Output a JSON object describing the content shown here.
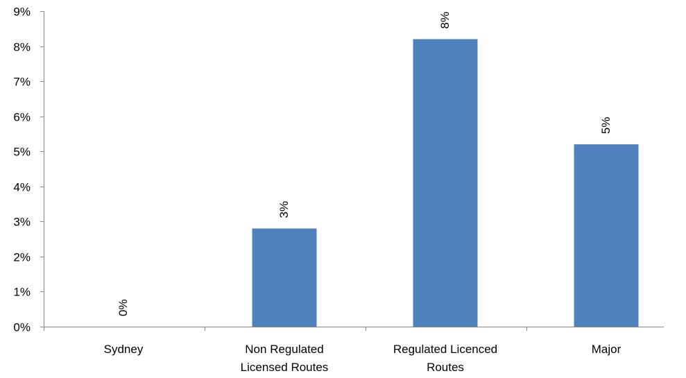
{
  "chart_data": {
    "type": "bar",
    "categories": [
      [
        "Sydney"
      ],
      [
        "Non Regulated",
        "Licensed Routes"
      ],
      [
        "Regulated Licenced",
        "Routes"
      ],
      [
        "Major"
      ]
    ],
    "values": [
      0,
      2.8,
      8.2,
      5.2
    ],
    "data_labels": [
      "0%",
      "3%",
      "8%",
      "5%"
    ],
    "title": "",
    "xlabel": "",
    "ylabel": "",
    "ylim": [
      0,
      9
    ],
    "y_ticks": [
      "0%",
      "1%",
      "2%",
      "3%",
      "4%",
      "5%",
      "6%",
      "7%",
      "8%",
      "9%"
    ],
    "grid": false,
    "legend": "none",
    "colors": {
      "bar": "#4F81BD",
      "axis": "#868686",
      "text": "#000000"
    }
  }
}
